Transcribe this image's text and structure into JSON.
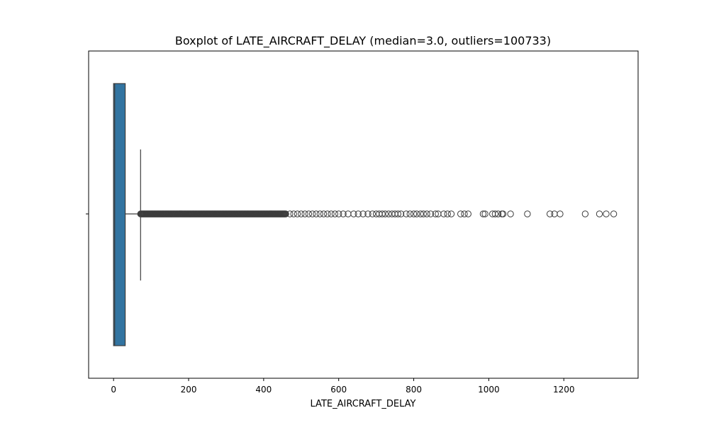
{
  "chart_data": {
    "type": "boxplot",
    "title": "Boxplot of LATE_AIRCRAFT_DELAY (median=3.0, outliers=100733)",
    "xlabel": "LATE_AIRCRAFT_DELAY",
    "ylabel": "",
    "orientation": "horizontal",
    "xlim": [
      -66.5,
      1398
    ],
    "xticks": [
      0,
      200,
      400,
      600,
      800,
      1000,
      1200
    ],
    "xtick_labels": [
      "0",
      "200",
      "400",
      "600",
      "800",
      "1000",
      "1200"
    ],
    "grid": false,
    "colors": {
      "box": "#3274a1",
      "edge": "#3d3d3d"
    },
    "box": {
      "min": 0,
      "q1": 0,
      "median": 3.0,
      "q3": 31,
      "whisker_high": 72,
      "outlier_count": 100733
    },
    "outliers_dense_range": [
      72,
      460
    ],
    "outliers_sampled": [
      470,
      480,
      490,
      500,
      510,
      520,
      530,
      540,
      550,
      560,
      570,
      580,
      590,
      600,
      612,
      625,
      640,
      652,
      665,
      678,
      690,
      700,
      708,
      716,
      724,
      733,
      742,
      750,
      758,
      766,
      780,
      790,
      800,
      808,
      818,
      826,
      835,
      845,
      858,
      865,
      880,
      890,
      900,
      925,
      935,
      945,
      985,
      990,
      1010,
      1017,
      1025,
      1035,
      1038,
      1058,
      1103,
      1163,
      1175,
      1190,
      1257,
      1295,
      1313,
      1333
    ]
  }
}
